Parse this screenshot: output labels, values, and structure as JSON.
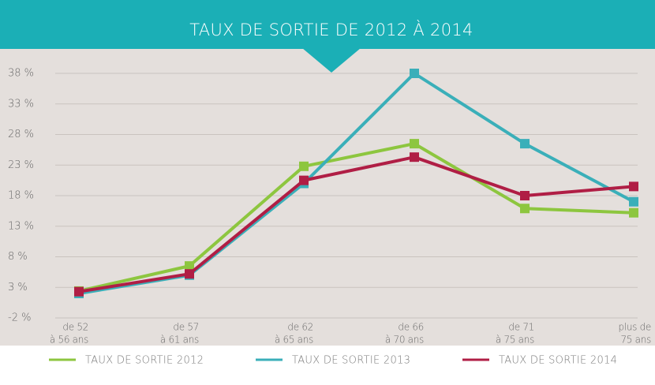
{
  "chart_data": {
    "type": "line",
    "title": "TAUX DE SORTIE DE 2012 À 2014",
    "categories": [
      [
        "de 52",
        "à 56 ans"
      ],
      [
        "de 57",
        "à 61 ans"
      ],
      [
        "de 62",
        "à 65 ans"
      ],
      [
        "de 66",
        "à 70 ans"
      ],
      [
        "de 71",
        "à 75 ans"
      ],
      [
        "plus de",
        "75 ans"
      ]
    ],
    "series": [
      {
        "name": "TAUX DE SORTIE 2012",
        "color": "#8dc63f",
        "values": [
          2.4,
          6.5,
          22.8,
          26.5,
          15.9,
          15.2
        ]
      },
      {
        "name": "TAUX DE SORTIE 2013",
        "color": "#3aafb9",
        "values": [
          2.0,
          5.0,
          20.0,
          38.0,
          26.5,
          17.0
        ]
      },
      {
        "name": "TAUX DE SORTIE 2014",
        "color": "#b01e45",
        "values": [
          2.3,
          5.2,
          20.5,
          24.3,
          18.0,
          19.5
        ]
      }
    ],
    "ylim": [
      -2,
      38
    ],
    "yticks": [
      {
        "value": -2,
        "label": "-2 %"
      },
      {
        "value": 3,
        "label": "3 %"
      },
      {
        "value": 8,
        "label": "8 %"
      },
      {
        "value": 13,
        "label": "13 %"
      },
      {
        "value": 18,
        "label": "18 %"
      },
      {
        "value": 23,
        "label": "23 %"
      },
      {
        "value": 28,
        "label": "28 %"
      },
      {
        "value": 33,
        "label": "33 %"
      },
      {
        "value": 38,
        "label": "38 %"
      }
    ],
    "grid": true,
    "legend": "bottom"
  }
}
